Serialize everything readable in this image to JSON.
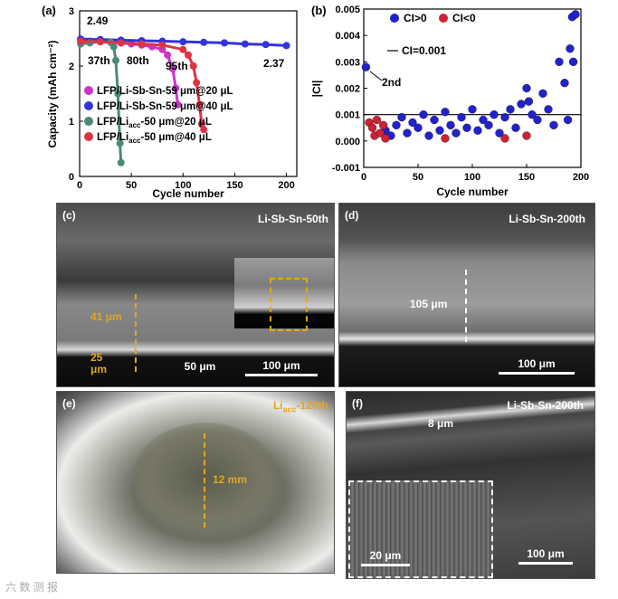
{
  "panel_a": {
    "label": "(a)",
    "ylabel": "Capacity (mAh cm⁻²)",
    "xlabel": "Cycle number",
    "ann_top": "2.49",
    "ann_end": "2.37",
    "ann_37": "37th",
    "ann_80": "80th",
    "ann_95": "95th",
    "legend": [
      "LFP/Li-Sb-Sn-59 μm@20 μL",
      "LFP/Li-Sb-Sn-59 μm@40 μL",
      "LFP/Li",
      "LFP/Li"
    ],
    "legend_sub": [
      "",
      "",
      "acc",
      "acc"
    ],
    "legend_tail": [
      "",
      "",
      "-50 μm@20 μL",
      "-50 μm@40 μL"
    ],
    "colors": [
      "#cc33cc",
      "#3333dd",
      "#4a8a7a",
      "#dd3344"
    ]
  },
  "panel_b": {
    "label": "(b)",
    "ylabel": "|CI|",
    "xlabel": "Cycle number",
    "legend_pos": "CI>0",
    "legend_neg": "CI<0",
    "legend_line": "CI=0.001",
    "ann_2nd": "2nd"
  },
  "chart_data": [
    {
      "type": "line",
      "xlabel": "Cycle number",
      "ylabel": "Capacity (mAh cm⁻²)",
      "xlim": [
        0,
        210
      ],
      "ylim": [
        0,
        3
      ],
      "xticks": [
        0,
        50,
        100,
        150,
        200
      ],
      "yticks": [
        0,
        1,
        2,
        3
      ],
      "series": [
        {
          "name": "LFP/Li-Sb-Sn-59 μm@20 μL",
          "color": "#cc33cc",
          "x": [
            1,
            10,
            20,
            30,
            40,
            50,
            60,
            70,
            80,
            85,
            90,
            93,
            95
          ],
          "y": [
            2.45,
            2.45,
            2.44,
            2.43,
            2.42,
            2.4,
            2.38,
            2.35,
            2.3,
            2.2,
            1.95,
            1.6,
            1.3
          ]
        },
        {
          "name": "LFP/Li-Sb-Sn-59 μm@40 μL",
          "color": "#3333dd",
          "x": [
            1,
            20,
            40,
            60,
            80,
            100,
            120,
            140,
            160,
            180,
            200
          ],
          "y": [
            2.49,
            2.48,
            2.47,
            2.46,
            2.45,
            2.44,
            2.43,
            2.42,
            2.4,
            2.39,
            2.37
          ]
        },
        {
          "name": "LFP/Liacc-50 μm@20 μL",
          "color": "#4a8a7a",
          "x": [
            1,
            10,
            20,
            30,
            33,
            35,
            37,
            39,
            40
          ],
          "y": [
            2.4,
            2.42,
            2.44,
            2.43,
            2.35,
            2.1,
            1.5,
            0.6,
            0.25
          ]
        },
        {
          "name": "LFP/Liacc-50 μm@40 μL",
          "color": "#dd3344",
          "x": [
            1,
            20,
            40,
            60,
            80,
            100,
            105,
            110,
            113,
            116,
            118,
            120
          ],
          "y": [
            2.45,
            2.44,
            2.42,
            2.4,
            2.38,
            2.3,
            2.2,
            2.0,
            1.7,
            1.3,
            0.95,
            0.85
          ]
        }
      ],
      "annotations": [
        "2.49",
        "2.37",
        "37th",
        "80th",
        "95th"
      ]
    },
    {
      "type": "scatter",
      "xlabel": "Cycle number",
      "ylabel": "|CI|",
      "xlim": [
        0,
        200
      ],
      "ylim": [
        -0.001,
        0.005
      ],
      "xticks": [
        0,
        50,
        100,
        150,
        200
      ],
      "yticks": [
        -0.001,
        0.0,
        0.001,
        0.002,
        0.003,
        0.004,
        0.005
      ],
      "reference_line": 0.001,
      "series": [
        {
          "name": "CI>0",
          "color": "#2222cc",
          "x": [
            2,
            20,
            25,
            30,
            35,
            40,
            45,
            50,
            55,
            60,
            65,
            70,
            75,
            80,
            85,
            90,
            95,
            100,
            105,
            110,
            115,
            120,
            125,
            130,
            135,
            140,
            145,
            150,
            152,
            155,
            160,
            165,
            170,
            175,
            180,
            185,
            188,
            190,
            192,
            193,
            195
          ],
          "y": [
            0.0028,
            0.0004,
            0.0002,
            0.0006,
            0.0009,
            0.0003,
            0.0007,
            0.0005,
            0.001,
            0.0002,
            0.0008,
            0.0004,
            0.0011,
            0.0006,
            0.0003,
            0.0009,
            0.0005,
            0.0012,
            0.0004,
            0.0008,
            0.0006,
            0.001,
            0.0003,
            0.0009,
            0.0012,
            0.0005,
            0.0014,
            0.002,
            0.0015,
            0.001,
            0.0008,
            0.0018,
            0.0012,
            0.0006,
            0.003,
            0.0022,
            0.0008,
            0.0035,
            0.0047,
            0.003,
            0.0048
          ]
        },
        {
          "name": "CI<0",
          "color": "#cc2233",
          "x": [
            5,
            8,
            10,
            12,
            15,
            18,
            20,
            75,
            130,
            150
          ],
          "y": [
            0.0007,
            0.0005,
            0.0002,
            0.0008,
            0.0003,
            0.0006,
            0.0001,
            0.0001,
            0.0001,
            0.0002
          ]
        }
      ],
      "annotations": [
        "2nd"
      ]
    }
  ],
  "panel_c": {
    "label": "(c)",
    "tag": "Li-Sb-Sn-50th",
    "m1": "41 μm",
    "m2": "25",
    "m2b": "μm",
    "scale_left": "50 μm",
    "scale_right": "100 μm"
  },
  "panel_d": {
    "label": "(d)",
    "tag": "Li-Sb-Sn-200th",
    "m1": "105 μm",
    "scale": "100 μm"
  },
  "panel_e": {
    "label": "(e)",
    "tag_pre": "Li",
    "tag_sub": "acc",
    "tag_post": "-120th",
    "m1": "12 mm"
  },
  "panel_f": {
    "label": "(f)",
    "tag": "Li-Sb-Sn-200th",
    "m1": "8 μm",
    "scale_inset": "20 μm",
    "scale": "100 μm"
  },
  "watermark": "六 数 测 报"
}
